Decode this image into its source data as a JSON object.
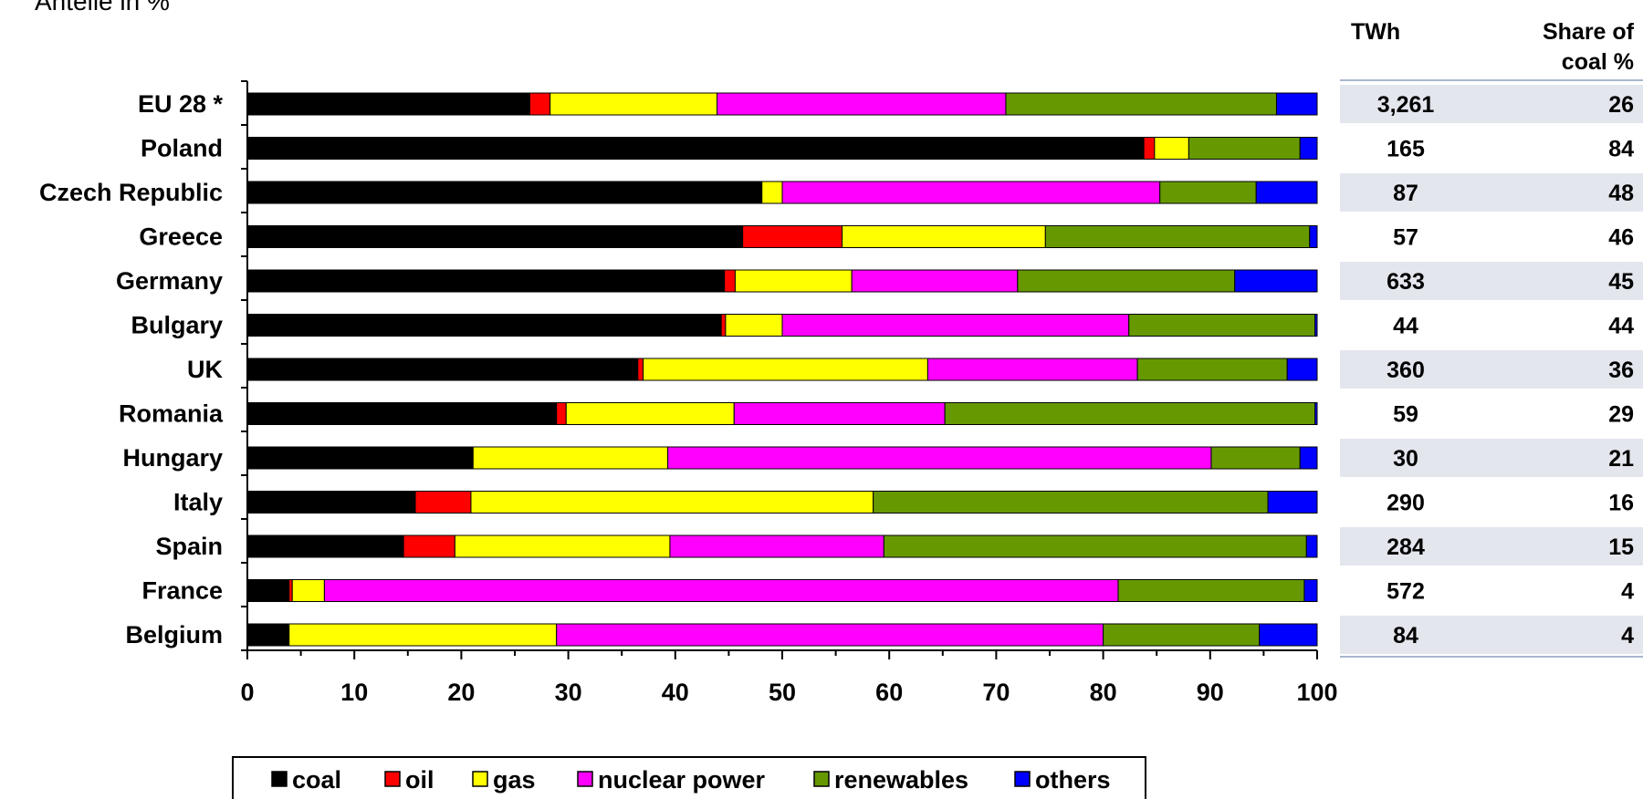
{
  "unit_label": "Anteile in %",
  "table": {
    "header_twh": "TWh",
    "header_share_line1": "Share of",
    "header_share_line2": "coal %",
    "rows": [
      {
        "twh": "3,261",
        "share": "26"
      },
      {
        "twh": "165",
        "share": "84"
      },
      {
        "twh": "87",
        "share": "48"
      },
      {
        "twh": "57",
        "share": "46"
      },
      {
        "twh": "633",
        "share": "45"
      },
      {
        "twh": "44",
        "share": "44"
      },
      {
        "twh": "360",
        "share": "36"
      },
      {
        "twh": "59",
        "share": "29"
      },
      {
        "twh": "30",
        "share": "21"
      },
      {
        "twh": "290",
        "share": "16"
      },
      {
        "twh": "284",
        "share": "15"
      },
      {
        "twh": "572",
        "share": "4"
      },
      {
        "twh": "84",
        "share": "4"
      }
    ]
  },
  "chart_data": {
    "type": "bar",
    "orientation": "horizontal",
    "stacked": true,
    "categories": [
      "EU 28 *",
      "Poland",
      "Czech Republic",
      "Greece",
      "Germany",
      "Bulgary",
      "UK",
      "Romania",
      "Hungary",
      "Italy",
      "Spain",
      "France",
      "Belgium"
    ],
    "series": [
      {
        "name": "coal",
        "color": "#000000",
        "values": [
          26.4,
          83.8,
          48.1,
          46.3,
          44.6,
          44.3,
          36.5,
          28.9,
          21.1,
          15.7,
          14.6,
          3.9,
          3.9
        ]
      },
      {
        "name": "oil",
        "color": "#ff0000",
        "values": [
          1.9,
          1.0,
          0.0,
          9.3,
          1.0,
          0.4,
          0.5,
          0.9,
          0.0,
          5.2,
          4.8,
          0.3,
          0.0
        ]
      },
      {
        "name": "gas",
        "color": "#ffff00",
        "values": [
          15.6,
          3.2,
          1.9,
          19.0,
          10.9,
          5.3,
          26.6,
          15.7,
          18.2,
          37.6,
          20.1,
          3.0,
          25.0
        ]
      },
      {
        "name": "nuclear power",
        "color": "#ff00ff",
        "values": [
          27.0,
          0.0,
          35.3,
          0.0,
          15.5,
          32.4,
          19.6,
          19.7,
          50.8,
          0.0,
          20.0,
          74.2,
          51.1
        ]
      },
      {
        "name": "renewables",
        "color": "#669900",
        "values": [
          25.3,
          10.4,
          9.0,
          24.7,
          20.3,
          17.4,
          14.0,
          34.6,
          8.3,
          36.9,
          39.5,
          17.4,
          14.6
        ]
      },
      {
        "name": "others",
        "color": "#0000ff",
        "values": [
          3.8,
          1.6,
          5.7,
          0.7,
          7.7,
          0.2,
          2.8,
          0.2,
          1.6,
          4.6,
          1.0,
          1.2,
          5.4
        ]
      }
    ],
    "xlim": [
      0,
      100
    ],
    "xticks": [
      "0",
      "10",
      "20",
      "30",
      "40",
      "50",
      "60",
      "70",
      "80",
      "90",
      "100"
    ],
    "legend_position": "bottom-center",
    "grid": false
  }
}
